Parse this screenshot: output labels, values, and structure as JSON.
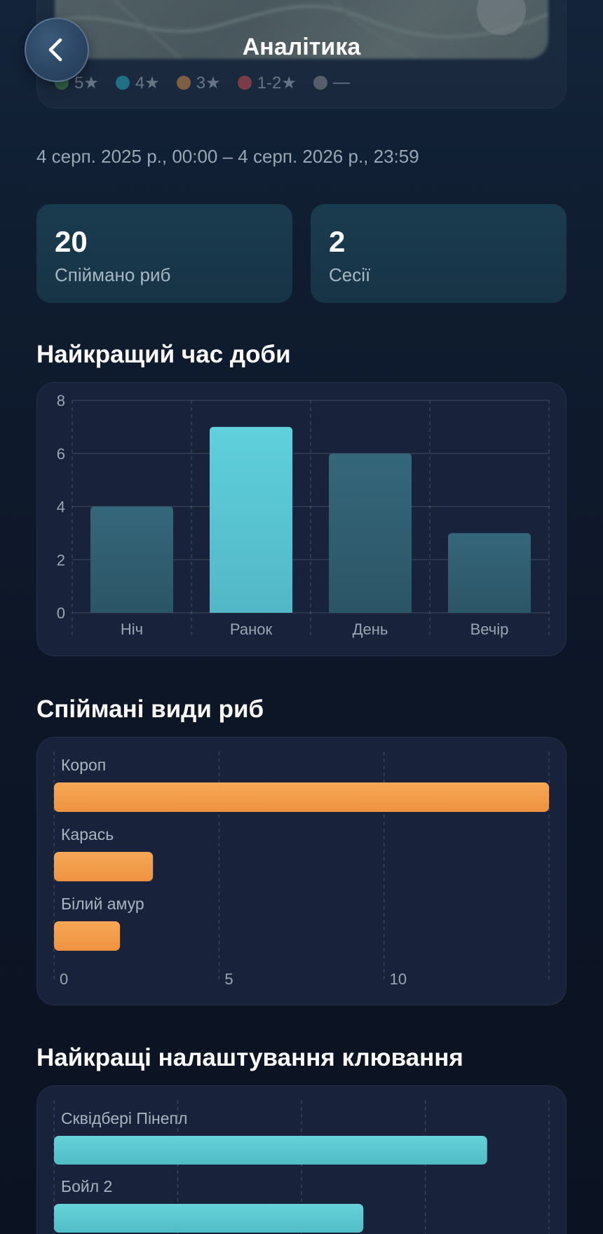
{
  "header": {
    "title": "Аналітика",
    "back_icon": "chevron-left-icon"
  },
  "map": {
    "legend": [
      {
        "label": "5★",
        "color": "#4caf50"
      },
      {
        "label": "4★",
        "color": "#26c6da"
      },
      {
        "label": "3★",
        "color": "#f5a04b"
      },
      {
        "label": "1-2★",
        "color": "#ef5350"
      },
      {
        "label": "—",
        "color": "#9e9e9e"
      }
    ]
  },
  "date_range": "4 серп. 2025 р., 00:00 – 4 серп. 2026 р., 23:59",
  "stats": {
    "fish_caught": {
      "value": "20",
      "label": "Спіймано риб"
    },
    "sessions": {
      "value": "2",
      "label": "Сесії"
    }
  },
  "best_time": {
    "title": "Найкращий час доби"
  },
  "species": {
    "title": "Спіймані види риб"
  },
  "bait": {
    "title": "Найкращі налаштування клювання"
  },
  "chart_data": [
    {
      "type": "bar",
      "categories": [
        "Ніч",
        "Ранок",
        "День",
        "Вечір"
      ],
      "values": [
        4,
        7,
        6,
        3
      ],
      "ylim": [
        0,
        8
      ],
      "yticks": [
        0,
        2,
        4,
        6,
        8
      ],
      "highlight_index": 1,
      "colors": {
        "bar": "#2f5d70",
        "highlight": "#5fd0dc"
      },
      "grid": true
    },
    {
      "type": "bar",
      "orientation": "horizontal",
      "categories": [
        "Короп",
        "Карась",
        "Білий амур"
      ],
      "values": [
        15,
        3,
        2
      ],
      "xlim": [
        0,
        15
      ],
      "xticks": [
        0,
        5,
        10
      ],
      "colors": {
        "bar": "#f5a04b"
      },
      "grid": true
    },
    {
      "type": "bar",
      "orientation": "horizontal",
      "categories": [
        "Сквідбері Пінепл",
        "Бойл 2"
      ],
      "values": [
        7,
        5
      ],
      "xlim": [
        0,
        8
      ],
      "colors": {
        "bar": "#5cc8d0"
      },
      "grid": true
    }
  ]
}
